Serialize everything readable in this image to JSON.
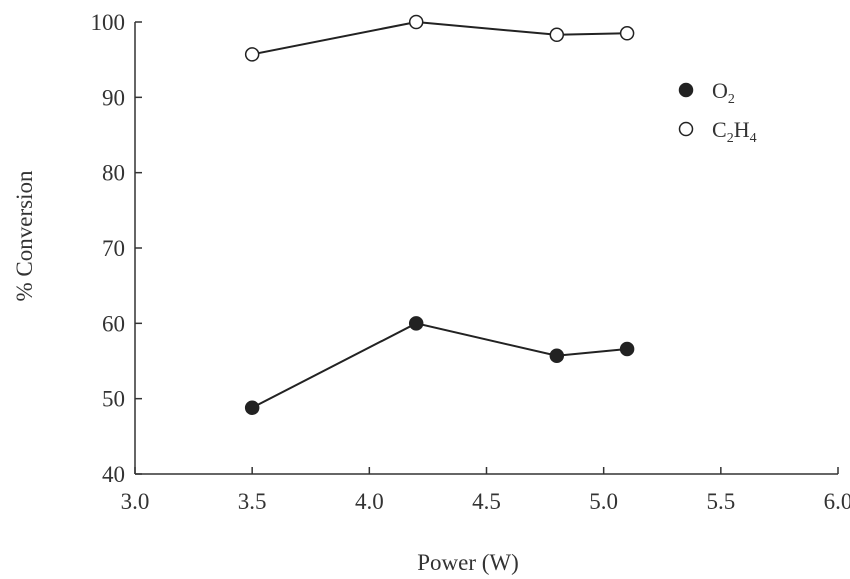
{
  "chart_data": {
    "type": "line",
    "title": "",
    "xlabel": "Power (W)",
    "ylabel": "% Conversion",
    "xlim": [
      3.0,
      6.0
    ],
    "ylim": [
      40,
      100
    ],
    "x_ticks": [
      "3.0",
      "3.5",
      "4.0",
      "4.5",
      "5.0",
      "5.5",
      "6.0"
    ],
    "y_ticks": [
      "40",
      "50",
      "60",
      "70",
      "80",
      "90",
      "100"
    ],
    "grid": false,
    "legend_position": "top-right",
    "series": [
      {
        "name": "O2",
        "label_main": "O",
        "label_sub": "2",
        "marker": "filled-circle",
        "color": "#222222",
        "x": [
          3.5,
          4.2,
          4.8,
          5.1
        ],
        "y": [
          48.8,
          60.0,
          55.7,
          56.6
        ]
      },
      {
        "name": "C2H4",
        "label_parts": [
          "C",
          "2",
          "H",
          "4"
        ],
        "marker": "open-circle",
        "color": "#222222",
        "x": [
          3.5,
          4.2,
          4.8,
          5.1
        ],
        "y": [
          95.7,
          100.0,
          98.3,
          98.5
        ]
      }
    ]
  }
}
